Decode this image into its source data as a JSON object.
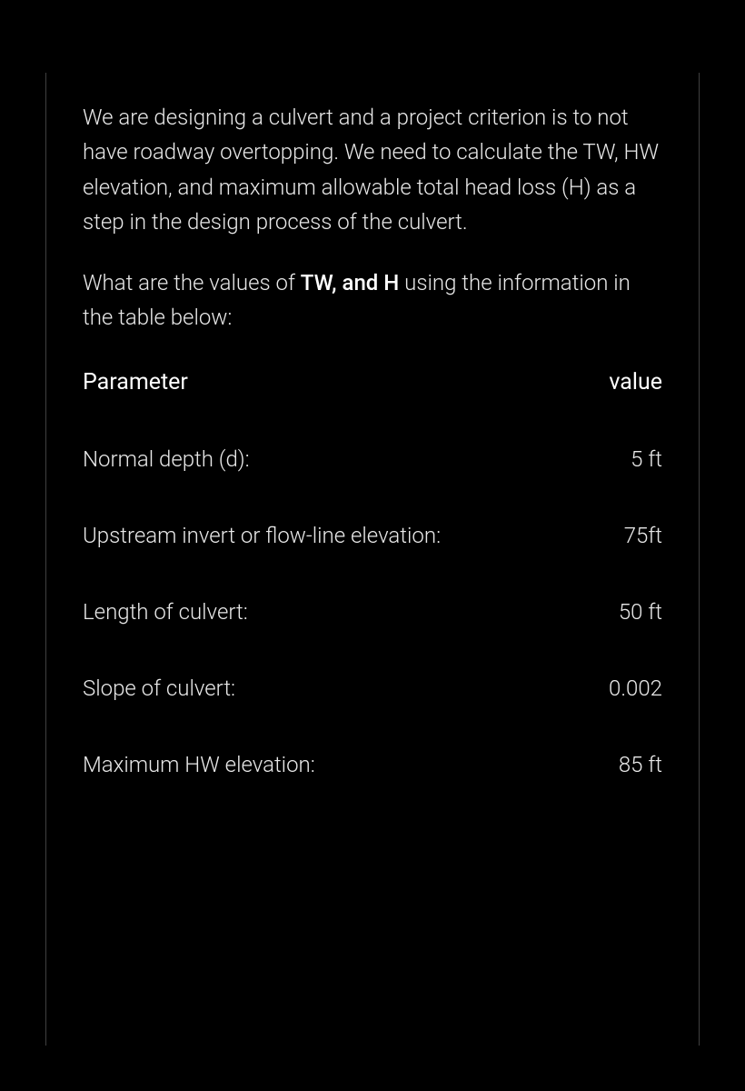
{
  "intro": {
    "paragraph1": " We are designing a culvert and a project criterion is to not have roadway overtopping. We need to calculate the TW, HW elevation, and maximum allowable total head loss (H) as a step in the design process of the culvert.",
    "paragraph2_prefix": "What are the values of ",
    "paragraph2_bold": "TW,  and  H",
    "paragraph2_suffix": " using the information in the table below:"
  },
  "table": {
    "header": {
      "param": "Parameter",
      "value": "value"
    },
    "rows": [
      {
        "param": "Normal depth (d):",
        "value": "5 ft"
      },
      {
        "param": "Upstream invert or flow-line elevation:",
        "value": "75ft"
      },
      {
        "param": "Length of culvert:",
        "value": "50 ft"
      },
      {
        "param": "Slope of culvert:",
        "value": "0.002"
      },
      {
        "param": "Maximum HW elevation:",
        "value": "85 ft"
      }
    ]
  },
  "style": {
    "background_color": "#000000",
    "text_color": "#e8e8e8",
    "bold_text_color": "#ffffff",
    "border_color": "rgba(255,255,255,0.25)",
    "body_fontsize": 24,
    "header_fontsize": 25,
    "line_height": 1.6,
    "row_padding_y": 28
  }
}
